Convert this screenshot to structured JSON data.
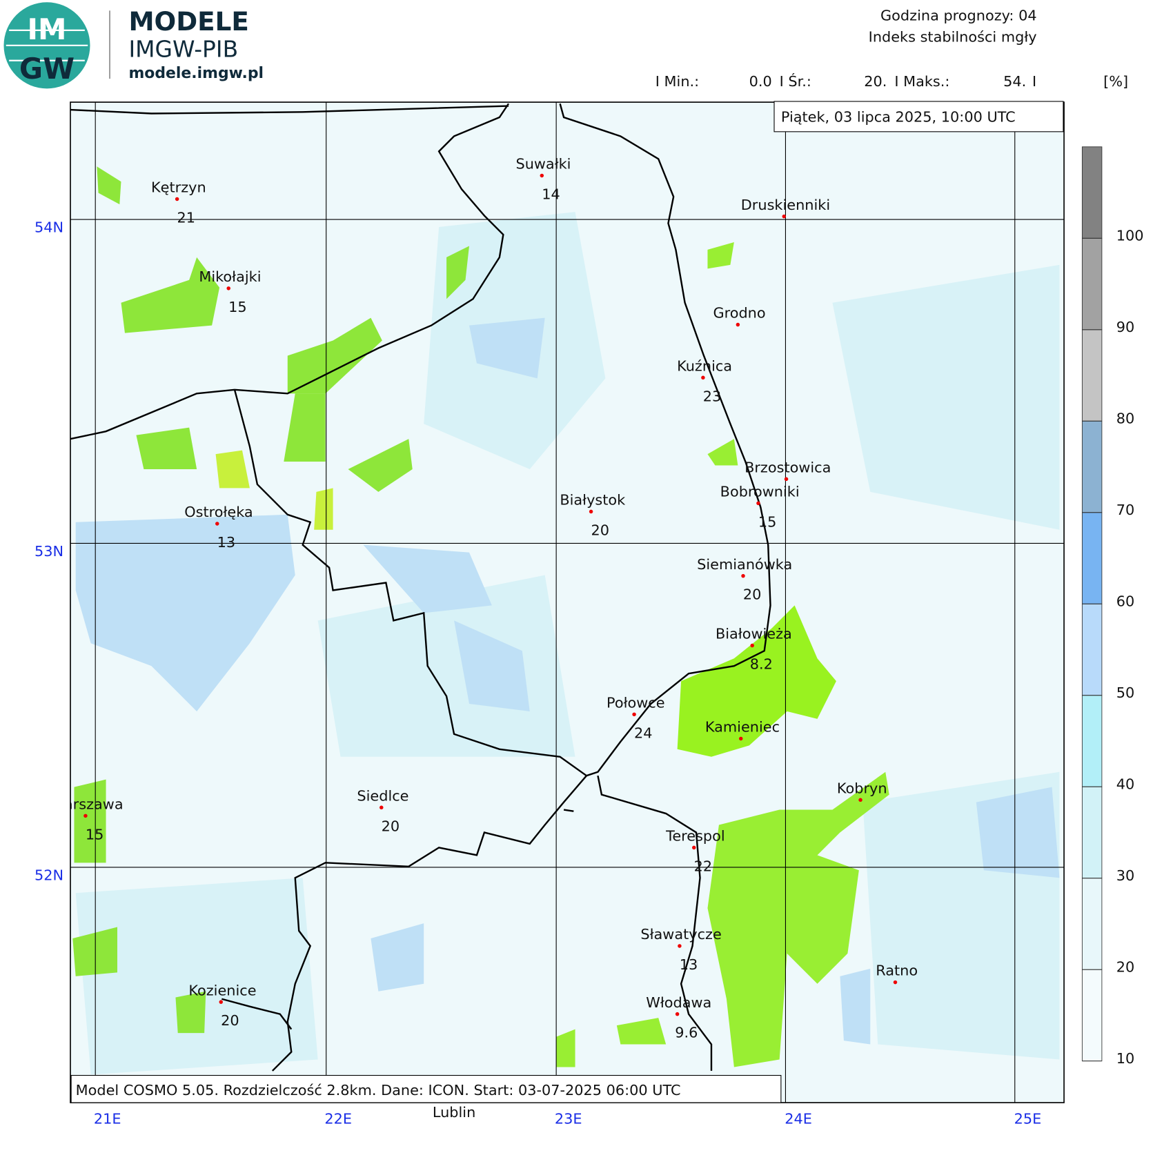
{
  "header": {
    "logo_top": "IM",
    "logo_bottom": "GW",
    "brand": "MODELE",
    "institute": "IMGW-PIB",
    "url": "modele.imgw.pl",
    "forecast_hour": "Godzina prognozy: 04",
    "field": "Indeks stabilności mgły"
  },
  "stats": {
    "min_label": "I Min.:",
    "min": "0.0",
    "mean_label": "I Śr.:",
    "mean": "20.",
    "max_label": "I Maks.:",
    "max": "54.",
    "separator": "I",
    "unit": "[%]"
  },
  "date": "Piątek, 03 lipca 2025, 10:00 UTC",
  "footer": "Model COSMO 5.05. Rozdzielczość 2.8km. Dane: ICON. Start: 03-07-2025 06:00 UTC",
  "outside_label": "Lublin",
  "longitudes": [
    "21E",
    "22E",
    "23E",
    "24E",
    "25E"
  ],
  "latitudes": [
    "54N",
    "53N",
    "52N"
  ],
  "colorbar": {
    "ticks": [
      10,
      20,
      30,
      40,
      50,
      60,
      70,
      80,
      90,
      100
    ],
    "colors": [
      "#f4fbfd",
      "#e8f7fa",
      "#d2f2f7",
      "#b2eff8",
      "#b8dafa",
      "#78b4f2",
      "#8cb2d2",
      "#c4c4c4",
      "#a2a2a2",
      "#828282"
    ]
  },
  "cities": [
    {
      "name": "Kętrzyn",
      "value": 21
    },
    {
      "name": "Mikołajki",
      "value": 15
    },
    {
      "name": "Suwałki",
      "value": 14
    },
    {
      "name": "Druskienniki"
    },
    {
      "name": "Grodno"
    },
    {
      "name": "Kuźnica",
      "value": 23
    },
    {
      "name": "Brzostowica"
    },
    {
      "name": "Bobrowniki",
      "value": 15
    },
    {
      "name": "Białystok",
      "value": 20
    },
    {
      "name": "Ostrołęka",
      "value": 13
    },
    {
      "name": "Siemianówka",
      "value": 20
    },
    {
      "name": "Białowieża",
      "value": 8.2
    },
    {
      "name": "Połowce",
      "value": 24
    },
    {
      "name": "Kamieniec"
    },
    {
      "name": "Kobryn"
    },
    {
      "name": "Warszawa",
      "value": 15
    },
    {
      "name": "Siedlce",
      "value": 20
    },
    {
      "name": "Terespol",
      "value": 22
    },
    {
      "name": "Sławatycze",
      "value": 13
    },
    {
      "name": "Włodawa",
      "value": 9.6
    },
    {
      "name": "Kozienice",
      "value": 20
    },
    {
      "name": "Ratno"
    }
  ]
}
